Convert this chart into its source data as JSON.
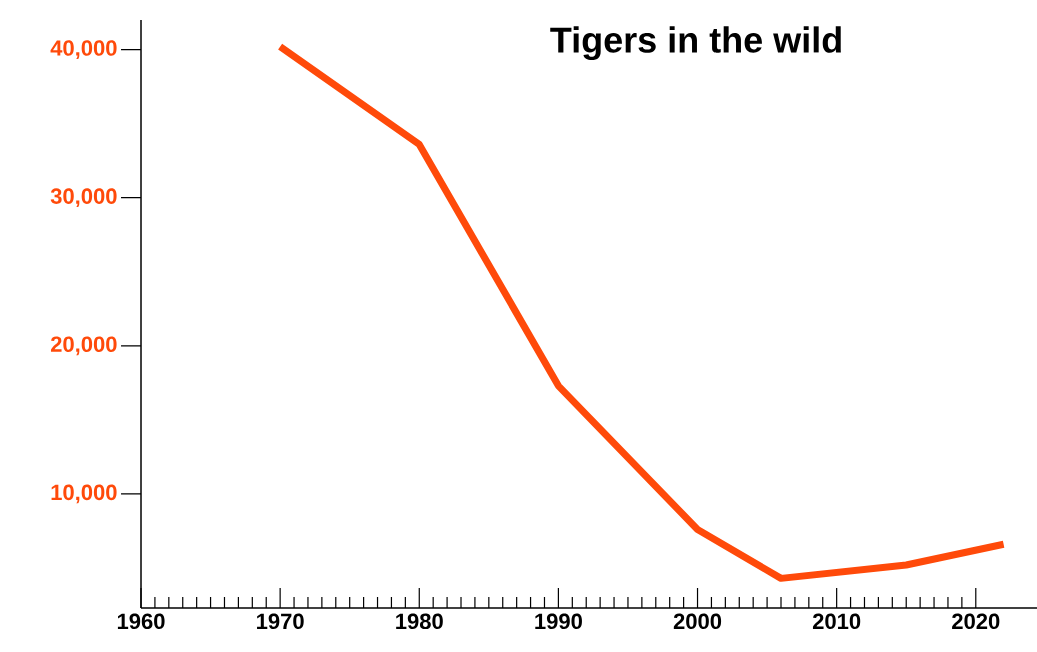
{
  "chart_data": {
    "type": "line",
    "title": "Tigers in the wild",
    "x": [
      1970,
      1980,
      1990,
      2000,
      2006,
      2015,
      2022
    ],
    "values": [
      40200,
      33600,
      17300,
      7600,
      4300,
      5200,
      6600
    ],
    "color": "#ff4a0a",
    "xlim": [
      1960,
      2024.4
    ],
    "ylim": [
      2300,
      42000
    ],
    "xticks": [
      1960,
      1970,
      1980,
      1990,
      2000,
      2010,
      2020
    ],
    "yticks": [
      {
        "value": 10000,
        "label": "10,000"
      },
      {
        "value": 20000,
        "label": "20,000"
      },
      {
        "value": 30000,
        "label": "30,000"
      },
      {
        "value": 40000,
        "label": "40,000"
      }
    ]
  }
}
